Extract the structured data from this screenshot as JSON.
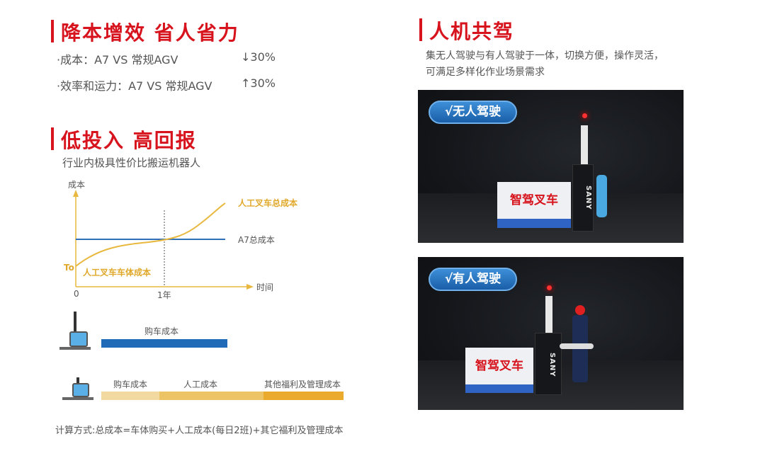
{
  "left": {
    "section1": {
      "title": "降本增效 省人省力",
      "bullets": [
        {
          "text": "·成本：A7 VS 常规AGV",
          "value": "↓30%"
        },
        {
          "text": "·效率和运力：A7 VS 常规AGV",
          "value": "↑30%"
        }
      ]
    },
    "section2": {
      "title": "低投入 高回报",
      "subtitle": "行业内极具性价比搬运机器人"
    },
    "chart_data": {
      "type": "line",
      "ylabel": "成本",
      "xlabel": "时间",
      "x_ticks": [
        "0",
        "1年"
      ],
      "y_tick": "To",
      "series": [
        {
          "name": "A7总成本",
          "shape": "constant",
          "color": "#2f6fb8"
        },
        {
          "name": "人工叉车总成本",
          "shape": "increasing, crosses A7总成本 at 1年",
          "color": "#e8b83f"
        }
      ],
      "annotation": "人工叉车车体成本",
      "grid": false
    },
    "cost_bars": {
      "a7": {
        "segments": [
          {
            "label": "购车成本",
            "color": "#1f6bb8"
          }
        ]
      },
      "manual": {
        "segments": [
          {
            "label": "购车成本",
            "color": "#f2d9a0"
          },
          {
            "label": "人工成本",
            "color": "#ecc466"
          },
          {
            "label": "其他福利及管理成本",
            "color": "#e9aa2e"
          }
        ]
      }
    },
    "formula": "计算方式:总成本=车体购买+人工成本(每日2班)+其它福利及管理成本"
  },
  "right": {
    "title": "人机共驾",
    "desc": [
      "集无人驾驶与有人驾驶于一体，切换方便，操作灵活，",
      "可满足多样化作业场景需求"
    ],
    "photos": [
      {
        "badge": "√无人驾驶",
        "sign": "智驾叉车",
        "brand": "SANY"
      },
      {
        "badge": "√有人驾驶",
        "sign": "智驾叉车",
        "brand": "SANY"
      }
    ]
  },
  "colors": {
    "accent": "#d7141d",
    "blue": "#2f6fb8",
    "gold": "#e8b83f"
  }
}
